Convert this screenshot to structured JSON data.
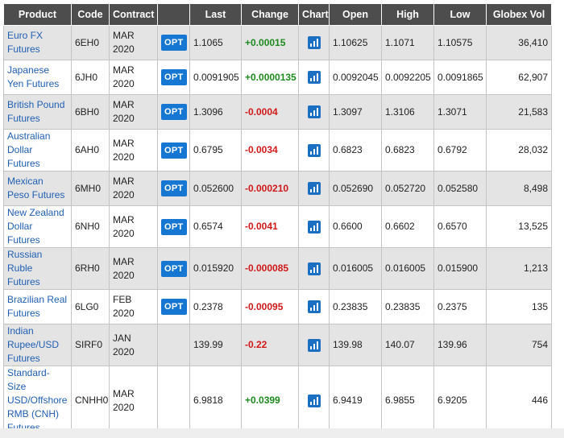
{
  "headers": {
    "product": "Product",
    "code": "Code",
    "contract": "Contract",
    "opt": "",
    "last": "Last",
    "change": "Change",
    "chart": "Chart",
    "open": "Open",
    "high": "High",
    "low": "Low",
    "globex_vol": "Globex Vol"
  },
  "opt_label": "OPT",
  "rows": [
    {
      "product": "Euro FX Futures",
      "code": "6EH0",
      "contract": "MAR 2020",
      "last": "1.1065",
      "change": "+0.00015",
      "open": "1.10625",
      "high": "1.1071",
      "low": "1.10575",
      "vol": "36,410"
    },
    {
      "product": "Japanese Yen Futures",
      "code": "6JH0",
      "contract": "MAR 2020",
      "last": "0.0091905",
      "change": "+0.0000135",
      "open": "0.0092045",
      "high": "0.0092205",
      "low": "0.0091865",
      "vol": "62,907"
    },
    {
      "product": "British Pound Futures",
      "code": "6BH0",
      "contract": "MAR 2020",
      "last": "1.3096",
      "change": "-0.0004",
      "open": "1.3097",
      "high": "1.3106",
      "low": "1.3071",
      "vol": "21,583"
    },
    {
      "product": "Australian Dollar Futures",
      "code": "6AH0",
      "contract": "MAR 2020",
      "last": "0.6795",
      "change": "-0.0034",
      "open": "0.6823",
      "high": "0.6823",
      "low": "0.6792",
      "vol": "28,032"
    },
    {
      "product": "Mexican Peso Futures",
      "code": "6MH0",
      "contract": "MAR 2020",
      "last": "0.052600",
      "change": "-0.000210",
      "open": "0.052690",
      "high": "0.052720",
      "low": "0.052580",
      "vol": "8,498"
    },
    {
      "product": "New Zealand Dollar Futures",
      "code": "6NH0",
      "contract": "MAR 2020",
      "last": "0.6574",
      "change": "-0.0041",
      "open": "0.6600",
      "high": "0.6602",
      "low": "0.6570",
      "vol": "13,525"
    },
    {
      "product": "Russian Ruble Futures",
      "code": "6RH0",
      "contract": "MAR 2020",
      "last": "0.015920",
      "change": "-0.000085",
      "open": "0.016005",
      "high": "0.016005",
      "low": "0.015900",
      "vol": "1,213"
    },
    {
      "product": "Brazilian Real Futures",
      "code": "6LG0",
      "contract": "FEB 2020",
      "last": "0.2378",
      "change": "-0.00095",
      "open": "0.23835",
      "high": "0.23835",
      "low": "0.2375",
      "vol": "135"
    },
    {
      "product": "Indian Rupee/USD Futures",
      "code": "SIRF0",
      "contract": "JAN 2020",
      "last": "139.99",
      "change": "-0.22",
      "open": "139.98",
      "high": "140.07",
      "low": "139.96",
      "vol": "754"
    },
    {
      "product": "Standard-Size USD/Offshore RMB (CNH) Futures",
      "code": "CNHH0",
      "contract": "MAR 2020",
      "last": "6.9818",
      "change": "+0.0399",
      "open": "6.9419",
      "high": "6.9855",
      "low": "6.9205",
      "vol": "446"
    }
  ],
  "colors": {
    "header_bg": "#4d4d4d",
    "product_link": "#1f5fb3",
    "change_positive": "#1e8a1e",
    "change_negative": "#d01818",
    "opt_button": "#1677d2",
    "chart_icon": "#1b6fc3"
  },
  "icons": {
    "chart": "bar-chart-icon"
  }
}
